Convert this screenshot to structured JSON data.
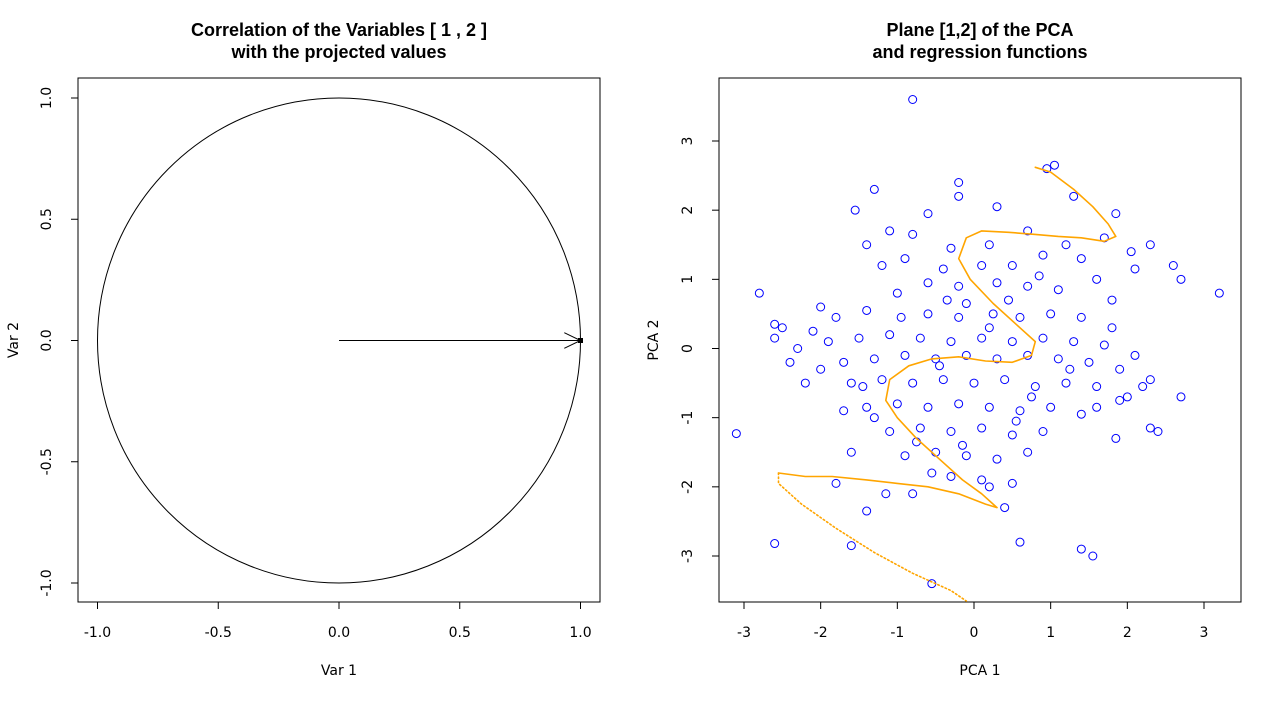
{
  "chart_data": [
    {
      "type": "scatter",
      "title_lines": [
        "Correlation of the Variables [ 1 , 2 ]",
        "with the projected values"
      ],
      "xlabel": "Var 1",
      "ylabel": "Var 2",
      "xlim": [
        -1.0,
        1.0
      ],
      "ylim": [
        -1.0,
        1.0
      ],
      "xticks": [
        "-1.0",
        "-0.5",
        "0.0",
        "0.5",
        "1.0"
      ],
      "yticks": [
        "-1.0",
        "-0.5",
        "0.0",
        "0.5",
        "1.0"
      ],
      "xtick_values": [
        -1.0,
        -0.5,
        0.0,
        0.5,
        1.0
      ],
      "ytick_values": [
        -1.0,
        -0.5,
        0.0,
        0.5,
        1.0
      ],
      "unit_circle": {
        "center": [
          0,
          0
        ],
        "radius": 1
      },
      "arrows": [
        {
          "from": [
            0,
            0
          ],
          "to": [
            1.0,
            0.0
          ]
        }
      ],
      "grid": false
    },
    {
      "type": "scatter",
      "title_lines": [
        "Plane [1,2] of the PCA",
        "and regression functions"
      ],
      "xlabel": "PCA 1",
      "ylabel": "PCA 2",
      "xlim": [
        -3.2,
        3.4
      ],
      "ylim": [
        -3.65,
        3.9
      ],
      "xticks": [
        "-3",
        "-2",
        "-1",
        "0",
        "1",
        "2",
        "3"
      ],
      "yticks": [
        "-3",
        "-2",
        "-1",
        "0",
        "1",
        "2",
        "3"
      ],
      "xtick_values": [
        -3,
        -2,
        -1,
        0,
        1,
        2,
        3
      ],
      "ytick_values": [
        -3,
        -2,
        -1,
        0,
        1,
        2,
        3
      ],
      "point_color": "#0000ff",
      "curve_color": "#ffa500",
      "grid": false,
      "points": [
        [
          -0.8,
          3.6
        ],
        [
          -3.1,
          -1.23
        ],
        [
          3.2,
          0.8
        ],
        [
          2.7,
          -0.7
        ],
        [
          -2.8,
          0.8
        ],
        [
          -2.6,
          -2.82
        ],
        [
          1.55,
          -3.0
        ],
        [
          -0.55,
          -3.4
        ],
        [
          0.95,
          2.6
        ],
        [
          1.05,
          2.65
        ],
        [
          -0.2,
          2.4
        ],
        [
          -1.3,
          2.3
        ],
        [
          -1.55,
          2.0
        ],
        [
          2.6,
          1.2
        ],
        [
          2.7,
          1.0
        ],
        [
          2.3,
          1.5
        ],
        [
          -2.6,
          0.35
        ],
        [
          -2.4,
          -0.2
        ],
        [
          -2.6,
          0.15
        ],
        [
          -1.6,
          -2.85
        ],
        [
          -1.4,
          -2.35
        ],
        [
          -1.15,
          -2.1
        ],
        [
          0.6,
          -2.8
        ],
        [
          1.4,
          -2.9
        ],
        [
          1.85,
          -1.3
        ],
        [
          2.4,
          -1.2
        ],
        [
          2.3,
          -1.15
        ],
        [
          -0.55,
          -1.8
        ],
        [
          0.2,
          -2.0
        ],
        [
          0.4,
          -2.3
        ],
        [
          -1.6,
          -1.5
        ],
        [
          -1.8,
          -1.95
        ],
        [
          -0.8,
          -2.1
        ],
        [
          1.7,
          1.6
        ],
        [
          1.85,
          1.95
        ],
        [
          2.05,
          1.4
        ],
        [
          2.1,
          1.15
        ],
        [
          1.3,
          2.2
        ],
        [
          0.3,
          2.05
        ],
        [
          -0.2,
          2.2
        ],
        [
          -0.6,
          1.95
        ],
        [
          -1.1,
          1.7
        ],
        [
          -1.4,
          1.5
        ],
        [
          -0.9,
          1.3
        ],
        [
          -0.3,
          1.45
        ],
        [
          0.2,
          1.5
        ],
        [
          0.5,
          1.2
        ],
        [
          0.9,
          1.35
        ],
        [
          1.2,
          1.5
        ],
        [
          1.4,
          1.3
        ],
        [
          -0.6,
          0.95
        ],
        [
          -0.2,
          0.9
        ],
        [
          0.3,
          0.95
        ],
        [
          0.7,
          0.9
        ],
        [
          -1.0,
          0.8
        ],
        [
          -1.4,
          0.55
        ],
        [
          -1.8,
          0.45
        ],
        [
          -2.1,
          0.25
        ],
        [
          -0.6,
          0.5
        ],
        [
          -0.2,
          0.45
        ],
        [
          0.25,
          0.5
        ],
        [
          0.6,
          0.45
        ],
        [
          1.0,
          0.5
        ],
        [
          1.4,
          0.45
        ],
        [
          1.8,
          0.3
        ],
        [
          -1.9,
          0.1
        ],
        [
          -1.5,
          0.15
        ],
        [
          -1.1,
          0.2
        ],
        [
          -0.7,
          0.15
        ],
        [
          -0.3,
          0.1
        ],
        [
          0.1,
          0.15
        ],
        [
          0.5,
          0.1
        ],
        [
          0.9,
          0.15
        ],
        [
          1.3,
          0.1
        ],
        [
          1.7,
          0.05
        ],
        [
          2.1,
          -0.1
        ],
        [
          -1.7,
          -0.2
        ],
        [
          -1.3,
          -0.15
        ],
        [
          -0.9,
          -0.1
        ],
        [
          -0.5,
          -0.15
        ],
        [
          -0.1,
          -0.1
        ],
        [
          0.3,
          -0.15
        ],
        [
          0.7,
          -0.1
        ],
        [
          1.1,
          -0.15
        ],
        [
          1.5,
          -0.2
        ],
        [
          1.9,
          -0.3
        ],
        [
          2.3,
          -0.45
        ],
        [
          -1.6,
          -0.5
        ],
        [
          -1.2,
          -0.45
        ],
        [
          -0.8,
          -0.5
        ],
        [
          -0.4,
          -0.45
        ],
        [
          0.0,
          -0.5
        ],
        [
          0.4,
          -0.45
        ],
        [
          0.8,
          -0.55
        ],
        [
          1.2,
          -0.5
        ],
        [
          1.6,
          -0.55
        ],
        [
          2.0,
          -0.7
        ],
        [
          -1.4,
          -0.85
        ],
        [
          -1.0,
          -0.8
        ],
        [
          -0.6,
          -0.85
        ],
        [
          -0.2,
          -0.8
        ],
        [
          0.2,
          -0.85
        ],
        [
          0.6,
          -0.9
        ],
        [
          1.0,
          -0.85
        ],
        [
          1.4,
          -0.95
        ],
        [
          -1.1,
          -1.2
        ],
        [
          -0.7,
          -1.15
        ],
        [
          -0.3,
          -1.2
        ],
        [
          0.1,
          -1.15
        ],
        [
          0.5,
          -1.25
        ],
        [
          0.9,
          -1.2
        ],
        [
          -0.9,
          -1.55
        ],
        [
          -0.5,
          -1.5
        ],
        [
          -0.1,
          -1.55
        ],
        [
          0.3,
          -1.6
        ],
        [
          0.7,
          -1.5
        ],
        [
          -0.3,
          -1.85
        ],
        [
          0.1,
          -1.9
        ],
        [
          0.5,
          -1.95
        ],
        [
          -2.2,
          -0.5
        ],
        [
          -2.3,
          0.0
        ],
        [
          -2.0,
          -0.3
        ],
        [
          -1.2,
          1.2
        ],
        [
          -0.8,
          1.65
        ],
        [
          0.7,
          1.7
        ],
        [
          1.6,
          1.0
        ],
        [
          1.8,
          0.7
        ],
        [
          -0.4,
          1.15
        ],
        [
          0.1,
          1.2
        ],
        [
          0.45,
          0.7
        ],
        [
          -0.35,
          0.7
        ],
        [
          -1.3,
          -1.0
        ],
        [
          1.9,
          -0.75
        ],
        [
          2.2,
          -0.55
        ],
        [
          -2.5,
          0.3
        ],
        [
          -2.0,
          0.6
        ],
        [
          -1.7,
          -0.9
        ],
        [
          -0.1,
          0.65
        ],
        [
          1.1,
          0.85
        ],
        [
          -0.95,
          0.45
        ],
        [
          0.75,
          -0.7
        ],
        [
          -0.45,
          -0.25
        ],
        [
          0.2,
          0.3
        ],
        [
          1.25,
          -0.3
        ],
        [
          -1.45,
          -0.55
        ],
        [
          0.55,
          -1.05
        ],
        [
          -0.75,
          -1.35
        ],
        [
          1.6,
          -0.85
        ],
        [
          -0.15,
          -1.4
        ],
        [
          0.85,
          1.05
        ]
      ],
      "curves": [
        {
          "style": "solid",
          "points": [
            [
              0.8,
              2.62
            ],
            [
              1.0,
              2.55
            ],
            [
              1.3,
              2.3
            ],
            [
              1.55,
              2.05
            ],
            [
              1.75,
              1.8
            ],
            [
              1.85,
              1.62
            ],
            [
              1.7,
              1.55
            ],
            [
              1.4,
              1.6
            ],
            [
              1.1,
              1.62
            ],
            [
              0.8,
              1.65
            ],
            [
              0.45,
              1.68
            ],
            [
              0.1,
              1.7
            ],
            [
              -0.1,
              1.6
            ],
            [
              -0.2,
              1.3
            ],
            [
              -0.05,
              1.0
            ],
            [
              0.25,
              0.65
            ],
            [
              0.6,
              0.3
            ],
            [
              0.8,
              0.1
            ],
            [
              0.75,
              -0.1
            ],
            [
              0.5,
              -0.2
            ],
            [
              0.15,
              -0.18
            ],
            [
              -0.2,
              -0.12
            ],
            [
              -0.55,
              -0.15
            ],
            [
              -0.85,
              -0.25
            ],
            [
              -1.1,
              -0.45
            ],
            [
              -1.15,
              -0.75
            ],
            [
              -1.0,
              -1.0
            ],
            [
              -0.75,
              -1.3
            ],
            [
              -0.45,
              -1.6
            ],
            [
              -0.15,
              -1.9
            ],
            [
              0.1,
              -2.1
            ],
            [
              0.3,
              -2.3
            ],
            [
              0.15,
              -2.25
            ],
            [
              -0.2,
              -2.1
            ],
            [
              -0.6,
              -2.0
            ],
            [
              -1.0,
              -1.95
            ],
            [
              -1.4,
              -1.9
            ],
            [
              -1.85,
              -1.85
            ],
            [
              -2.2,
              -1.85
            ],
            [
              -2.55,
              -1.8
            ]
          ]
        },
        {
          "style": "dotted",
          "points": [
            [
              -2.55,
              -1.8
            ],
            [
              -2.55,
              -1.95
            ],
            [
              -2.25,
              -2.25
            ],
            [
              -1.8,
              -2.6
            ],
            [
              -1.3,
              -2.95
            ],
            [
              -0.8,
              -3.25
            ],
            [
              -0.3,
              -3.5
            ],
            [
              -0.1,
              -3.65
            ]
          ]
        }
      ]
    }
  ]
}
